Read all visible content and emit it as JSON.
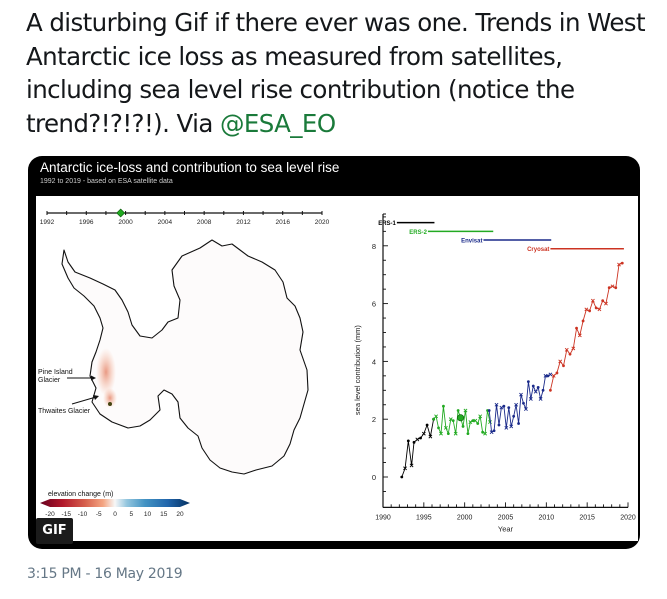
{
  "tweet": {
    "text": "A disturbing Gif if there ever was one. Trends in West Antarctic ice loss as measured from satellites, including sea level rise contribution (notice the trend?!?!?!). Via ",
    "mention": "@ESA_EO",
    "timestamp": "3:15 PM - 16 May 2019",
    "media_badge": "GIF"
  },
  "card": {
    "title": "Antarctic ice-loss and contribution to sea level rise",
    "subtitle": "1992 to 2019 - based on ESA satellite data"
  },
  "map": {
    "timeline": {
      "years": [
        "1992",
        "1996",
        "2000",
        "2004",
        "2008",
        "2012",
        "2016",
        "2020"
      ],
      "current_year": 1999.5,
      "marker_color": "#22aa22"
    },
    "labels": {
      "pine_island_line1": "Pine Island",
      "pine_island_line2": "Glacier",
      "thwaites": "Thwaites Glacier"
    },
    "colorbar": {
      "title": "elevation change (m)",
      "ticks": [
        "-20",
        "-15",
        "-10",
        "-5",
        "0",
        "5",
        "10",
        "15",
        "20"
      ]
    }
  },
  "chart_data": {
    "type": "line",
    "title": "Antarctic ice-loss and contribution to sea level rise",
    "xlabel": "Year",
    "ylabel": "sea level contribution (mm)",
    "xlim": [
      1990,
      2020
    ],
    "ylim": [
      -1,
      9
    ],
    "xticks": [
      1990,
      1995,
      2000,
      2005,
      2010,
      2015,
      2020
    ],
    "yticks": [
      0,
      2,
      4,
      6,
      8
    ],
    "missions": [
      {
        "name": "ERS-1",
        "color": "#000000",
        "start": 1991.7,
        "end": 1996.3,
        "y": 8.8
      },
      {
        "name": "ERS-2",
        "color": "#22aa22",
        "start": 1995.5,
        "end": 2003.5,
        "y": 8.5
      },
      {
        "name": "Envisat",
        "color": "#1a2a8a",
        "start": 2002.3,
        "end": 2010.6,
        "y": 8.2
      },
      {
        "name": "Cryosat",
        "color": "#cc3322",
        "start": 2010.5,
        "end": 2019.5,
        "y": 7.9
      }
    ],
    "series": [
      {
        "name": "ERS-1",
        "color": "#000000",
        "x": [
          1992.3,
          1992.7,
          1993.1,
          1993.5,
          1993.8,
          1994.2,
          1994.6,
          1995.0,
          1995.4,
          1995.8,
          1996.2
        ],
        "y": [
          0.0,
          0.3,
          1.25,
          0.4,
          1.2,
          1.3,
          1.35,
          1.5,
          1.8,
          1.4,
          2.0
        ]
      },
      {
        "name": "ERS-2",
        "color": "#22aa22",
        "x": [
          1996.2,
          1996.5,
          1996.8,
          1997.1,
          1997.4,
          1997.7,
          1998.0,
          1998.3,
          1998.6,
          1998.9,
          1999.2,
          1999.5,
          1999.8,
          2000.1,
          2000.4,
          2000.7,
          2001.0,
          2001.3,
          2001.6,
          2001.9,
          2002.2,
          2002.5,
          2002.8,
          2003.1
        ],
        "y": [
          2.0,
          2.1,
          1.7,
          1.5,
          2.45,
          1.7,
          1.5,
          2.0,
          1.95,
          1.5,
          2.3,
          2.05,
          1.75,
          2.3,
          1.5,
          1.9,
          1.95,
          1.95,
          1.85,
          2.1,
          1.55,
          1.5,
          2.3,
          1.9
        ]
      },
      {
        "name": "Envisat",
        "color": "#1a2a8a",
        "x": [
          2003.0,
          2003.3,
          2003.6,
          2003.9,
          2004.2,
          2004.5,
          2004.8,
          2005.1,
          2005.4,
          2005.7,
          2006.0,
          2006.3,
          2006.6,
          2006.9,
          2007.2,
          2007.5,
          2007.8,
          2008.1,
          2008.4,
          2008.7,
          2009.0,
          2009.3,
          2009.6,
          2009.9,
          2010.2,
          2010.5
        ],
        "y": [
          2.3,
          1.55,
          1.6,
          2.5,
          1.8,
          2.4,
          2.45,
          1.7,
          2.4,
          1.75,
          2.1,
          2.5,
          1.85,
          2.85,
          2.55,
          2.35,
          3.3,
          2.7,
          3.15,
          2.95,
          3.1,
          2.7,
          3.0,
          3.5,
          3.5,
          3.55
        ]
      },
      {
        "name": "Cryosat",
        "color": "#cc3322",
        "x": [
          2010.5,
          2010.9,
          2011.3,
          2011.7,
          2012.1,
          2012.5,
          2012.9,
          2013.3,
          2013.7,
          2014.1,
          2014.5,
          2014.9,
          2015.3,
          2015.7,
          2016.1,
          2016.5,
          2016.9,
          2017.3,
          2017.7,
          2018.1,
          2018.5,
          2018.9,
          2019.3
        ],
        "y": [
          3.0,
          3.5,
          3.6,
          4.0,
          3.85,
          4.4,
          4.25,
          4.45,
          5.15,
          4.9,
          5.4,
          5.8,
          5.75,
          6.1,
          5.85,
          5.8,
          6.1,
          6.0,
          6.55,
          6.6,
          6.55,
          7.35,
          7.4
        ]
      }
    ],
    "highlight_point": {
      "x": 1999.5,
      "y": 2.05,
      "color": "#22aa22"
    }
  }
}
